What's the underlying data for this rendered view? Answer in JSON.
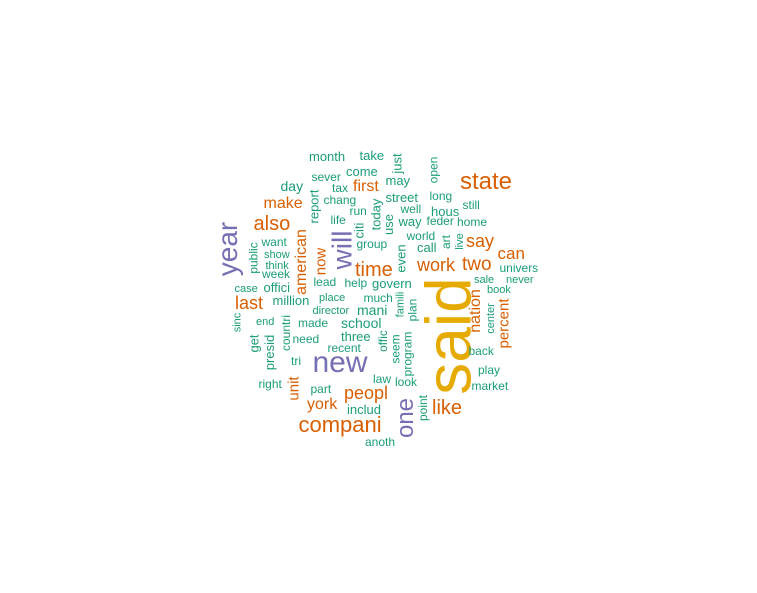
{
  "colors": {
    "big": "#e6ab02",
    "large": "#7570b3",
    "medium": "#d95f02",
    "small": "#1b9e77"
  },
  "words": [
    {
      "text": "said",
      "tier": "big"
    },
    {
      "text": "new",
      "tier": "large"
    },
    {
      "text": "year",
      "tier": "large"
    },
    {
      "text": "will",
      "tier": "large"
    },
    {
      "text": "one",
      "tier": "large"
    },
    {
      "text": "state",
      "tier": "medium"
    },
    {
      "text": "compani",
      "tier": "medium"
    },
    {
      "text": "like",
      "tier": "medium"
    },
    {
      "text": "peopl",
      "tier": "medium"
    },
    {
      "text": "also",
      "tier": "medium"
    },
    {
      "text": "time",
      "tier": "medium"
    },
    {
      "text": "work",
      "tier": "medium"
    },
    {
      "text": "two",
      "tier": "medium"
    },
    {
      "text": "say",
      "tier": "medium"
    },
    {
      "text": "can",
      "tier": "medium"
    },
    {
      "text": "last",
      "tier": "medium"
    },
    {
      "text": "make",
      "tier": "medium"
    },
    {
      "text": "first",
      "tier": "medium"
    },
    {
      "text": "york",
      "tier": "medium"
    },
    {
      "text": "american",
      "tier": "medium"
    },
    {
      "text": "now",
      "tier": "medium"
    },
    {
      "text": "nation",
      "tier": "medium"
    },
    {
      "text": "percent",
      "tier": "medium"
    },
    {
      "text": "unit",
      "tier": "medium"
    },
    {
      "text": "month",
      "tier": "small"
    },
    {
      "text": "take",
      "tier": "small"
    },
    {
      "text": "just",
      "tier": "small"
    },
    {
      "text": "sever",
      "tier": "small"
    },
    {
      "text": "come",
      "tier": "small"
    },
    {
      "text": "day",
      "tier": "small"
    },
    {
      "text": "tax",
      "tier": "small"
    },
    {
      "text": "may",
      "tier": "small"
    },
    {
      "text": "open",
      "tier": "small"
    },
    {
      "text": "report",
      "tier": "small"
    },
    {
      "text": "chang",
      "tier": "small"
    },
    {
      "text": "street",
      "tier": "small"
    },
    {
      "text": "long",
      "tier": "small"
    },
    {
      "text": "run",
      "tier": "small"
    },
    {
      "text": "today",
      "tier": "small"
    },
    {
      "text": "well",
      "tier": "small"
    },
    {
      "text": "hous",
      "tier": "small"
    },
    {
      "text": "still",
      "tier": "small"
    },
    {
      "text": "life",
      "tier": "small"
    },
    {
      "text": "citi",
      "tier": "small"
    },
    {
      "text": "use",
      "tier": "small"
    },
    {
      "text": "way",
      "tier": "small"
    },
    {
      "text": "feder",
      "tier": "small"
    },
    {
      "text": "home",
      "tier": "small"
    },
    {
      "text": "want",
      "tier": "small"
    },
    {
      "text": "world",
      "tier": "small"
    },
    {
      "text": "group",
      "tier": "small"
    },
    {
      "text": "even",
      "tier": "small"
    },
    {
      "text": "call",
      "tier": "small"
    },
    {
      "text": "art",
      "tier": "small"
    },
    {
      "text": "live",
      "tier": "small"
    },
    {
      "text": "public",
      "tier": "small"
    },
    {
      "text": "show",
      "tier": "small"
    },
    {
      "text": "think",
      "tier": "small"
    },
    {
      "text": "week",
      "tier": "small"
    },
    {
      "text": "univers",
      "tier": "small"
    },
    {
      "text": "offici",
      "tier": "small"
    },
    {
      "text": "lead",
      "tier": "small"
    },
    {
      "text": "help",
      "tier": "small"
    },
    {
      "text": "govern",
      "tier": "small"
    },
    {
      "text": "sale",
      "tier": "small"
    },
    {
      "text": "never",
      "tier": "small"
    },
    {
      "text": "case",
      "tier": "small"
    },
    {
      "text": "book",
      "tier": "small"
    },
    {
      "text": "million",
      "tier": "small"
    },
    {
      "text": "place",
      "tier": "small"
    },
    {
      "text": "much",
      "tier": "small"
    },
    {
      "text": "famili",
      "tier": "small"
    },
    {
      "text": "sinc",
      "tier": "small"
    },
    {
      "text": "director",
      "tier": "small"
    },
    {
      "text": "mani",
      "tier": "small"
    },
    {
      "text": "plan",
      "tier": "small"
    },
    {
      "text": "end",
      "tier": "small"
    },
    {
      "text": "made",
      "tier": "small"
    },
    {
      "text": "school",
      "tier": "small"
    },
    {
      "text": "center",
      "tier": "small"
    },
    {
      "text": "get",
      "tier": "small"
    },
    {
      "text": "countri",
      "tier": "small"
    },
    {
      "text": "presid",
      "tier": "small"
    },
    {
      "text": "need",
      "tier": "small"
    },
    {
      "text": "three",
      "tier": "small"
    },
    {
      "text": "offic",
      "tier": "small"
    },
    {
      "text": "seem",
      "tier": "small"
    },
    {
      "text": "recent",
      "tier": "small"
    },
    {
      "text": "program",
      "tier": "small"
    },
    {
      "text": "back",
      "tier": "small"
    },
    {
      "text": "tri",
      "tier": "small"
    },
    {
      "text": "play",
      "tier": "small"
    },
    {
      "text": "right",
      "tier": "small"
    },
    {
      "text": "part",
      "tier": "small"
    },
    {
      "text": "law",
      "tier": "small"
    },
    {
      "text": "look",
      "tier": "small"
    },
    {
      "text": "market",
      "tier": "small"
    },
    {
      "text": "includ",
      "tier": "small"
    },
    {
      "text": "point",
      "tier": "small"
    },
    {
      "text": "anoth",
      "tier": "small"
    }
  ]
}
